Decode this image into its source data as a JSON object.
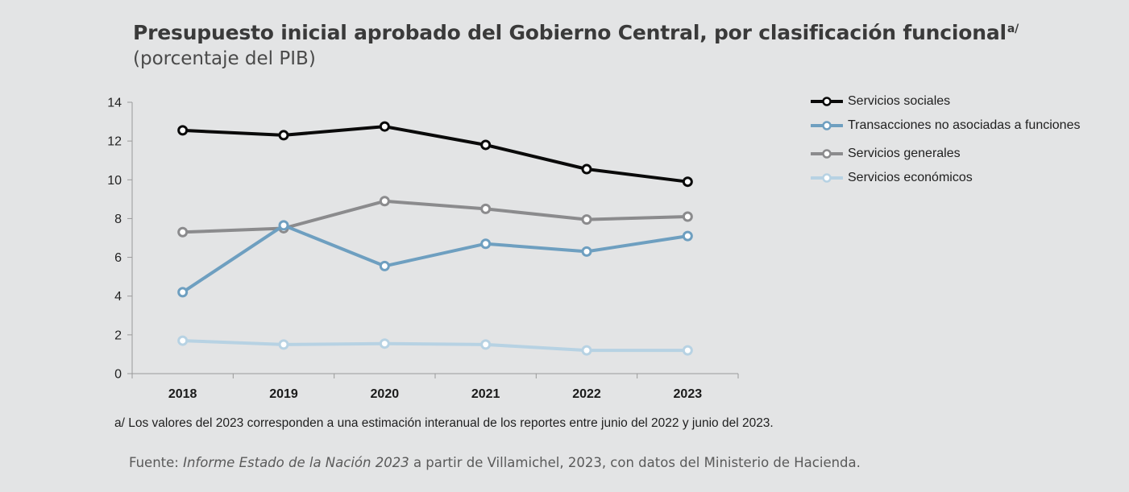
{
  "header": {
    "title": "Presupuesto inicial aprobado del Gobierno Central, por clasificación funcional",
    "title_sup": "a/",
    "subtitle": "(porcentaje del PIB)"
  },
  "chart_data": {
    "type": "line",
    "x": [
      "2018",
      "2019",
      "2020",
      "2021",
      "2022",
      "2023"
    ],
    "ylim": [
      0,
      14
    ],
    "yticks": [
      "0",
      "2",
      "4",
      "6",
      "8",
      "10",
      "12",
      "14"
    ],
    "legend_position": "right",
    "series": [
      {
        "name": "Servicios sociales",
        "color": "#0a0a0a",
        "values": [
          12.55,
          12.3,
          12.75,
          11.8,
          10.55,
          9.9
        ]
      },
      {
        "name": "Transacciones no asociadas a funciones",
        "color": "#6e9fc0",
        "values": [
          4.2,
          7.65,
          5.55,
          6.7,
          6.3,
          7.1
        ]
      },
      {
        "name": "Servicios generales",
        "color": "#8b8b8d",
        "values": [
          7.3,
          7.5,
          8.9,
          8.5,
          7.95,
          8.1
        ]
      },
      {
        "name": "Servicios económicos",
        "color": "#b7d2e3",
        "values": [
          1.7,
          1.5,
          1.55,
          1.5,
          1.2,
          1.2
        ]
      }
    ]
  },
  "footer": {
    "note": "a/ Los valores del 2023 corresponden a una estimación interanual de los reportes entre junio del 2022 y junio del 2023.",
    "source_prefix": "Fuente: ",
    "source_italic": "Informe Estado de la Nación 2023",
    "source_suffix": " a partir de Villamichel, 2023, con datos del Ministerio de Hacienda."
  }
}
